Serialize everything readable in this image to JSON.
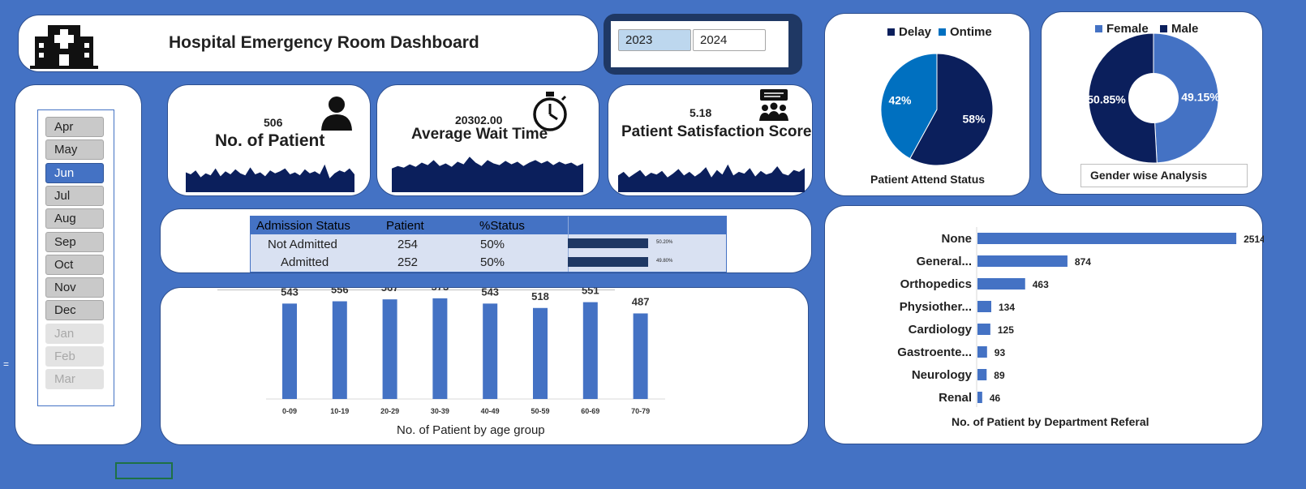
{
  "header": {
    "title": "Hospital Emergency Room Dashboard"
  },
  "years": {
    "options": [
      "2023",
      "2024"
    ],
    "selected": "2023"
  },
  "months": {
    "items": [
      "Apr",
      "May",
      "Jun",
      "Jul",
      "Aug",
      "Sep",
      "Oct",
      "Nov",
      "Dec",
      "Jan",
      "Feb",
      "Mar"
    ],
    "selected": "Jun",
    "dimmed": [
      "Jan",
      "Feb",
      "Mar"
    ]
  },
  "kpis": {
    "patients": {
      "value": "506",
      "label": "No. of Patient"
    },
    "wait": {
      "value": "20302.00",
      "label": "Average Wait Time"
    },
    "satisfaction": {
      "value": "5.18",
      "label": "Patient Satisfaction Score"
    }
  },
  "admission": {
    "headers": [
      "Admission Status",
      "Patient",
      "%Status"
    ],
    "rows": [
      {
        "status": "Not Admitted",
        "patient": "254",
        "pct": "50%",
        "bar_label": "50.20%",
        "bar_value": 0.502
      },
      {
        "status": "Admitted",
        "patient": "252",
        "pct": "50%",
        "bar_label": "49.80%",
        "bar_value": 0.498
      }
    ]
  },
  "stray_cell": "=",
  "colors": {
    "background": "#4472C4",
    "navy": "#0b1f5c",
    "blue": "#0070C0",
    "accent": "#4472C4",
    "female": "#4472C4",
    "male": "#0b1f5c"
  },
  "chart_data": [
    {
      "type": "area",
      "name": "patient-trend",
      "values": [
        20,
        18,
        22,
        15,
        19,
        17,
        24,
        16,
        21,
        18,
        23,
        19,
        17,
        25,
        18,
        20,
        16,
        22,
        19,
        21,
        24,
        18,
        20,
        17,
        23,
        19,
        21,
        18,
        28,
        14,
        19,
        22,
        20,
        24,
        18
      ]
    },
    {
      "type": "area",
      "name": "wait-trend",
      "values": [
        28,
        31,
        29,
        33,
        30,
        35,
        32,
        38,
        31,
        34,
        30,
        36,
        33,
        42,
        35,
        31,
        38,
        34,
        32,
        37,
        33,
        36,
        31,
        35,
        38,
        34,
        37,
        32,
        36,
        33,
        35,
        31,
        34
      ]
    },
    {
      "type": "area",
      "name": "satisfaction-trend",
      "values": [
        18,
        22,
        16,
        20,
        24,
        17,
        21,
        19,
        23,
        16,
        20,
        25,
        18,
        22,
        17,
        21,
        27,
        16,
        24,
        19,
        30,
        18,
        22,
        20,
        26,
        17,
        23,
        19,
        21,
        28,
        20,
        18,
        24,
        22,
        26
      ]
    },
    {
      "type": "pie",
      "title": "Patient Attend Status",
      "legend": [
        "Delay",
        "Ontime"
      ],
      "labels": [
        "Delay",
        "Ontime"
      ],
      "values": [
        58,
        42
      ],
      "data_labels": [
        "58%",
        "42%"
      ],
      "colors": [
        "#0b1f5c",
        "#0070C0"
      ],
      "legend_position": "top"
    },
    {
      "type": "pie",
      "variant": "donut",
      "title": "Gender wise Analysis",
      "legend": [
        "Female",
        "Male"
      ],
      "labels": [
        "Female",
        "Male"
      ],
      "values": [
        49.15,
        50.85
      ],
      "data_labels": [
        "49.15%",
        "50.85%"
      ],
      "colors": [
        "#4472C4",
        "#0b1f5c"
      ],
      "legend_position": "top"
    },
    {
      "type": "bar",
      "orientation": "horizontal",
      "title": "No. of Patient by Department Referal",
      "categories": [
        "None",
        "General...",
        "Orthopedics",
        "Physiother...",
        "Cardiology",
        "Gastroente...",
        "Neurology",
        "Renal"
      ],
      "values": [
        2514,
        874,
        463,
        134,
        125,
        93,
        89,
        46
      ],
      "xlim": [
        0,
        2600
      ]
    },
    {
      "type": "bar",
      "title": "No. of Patient by age group",
      "categories": [
        "0-09",
        "10-19",
        "20-29",
        "30-39",
        "40-49",
        "50-59",
        "60-69",
        "70-79"
      ],
      "values": [
        543,
        556,
        567,
        573,
        543,
        518,
        551,
        487
      ],
      "ylim": [
        0,
        600
      ]
    }
  ]
}
